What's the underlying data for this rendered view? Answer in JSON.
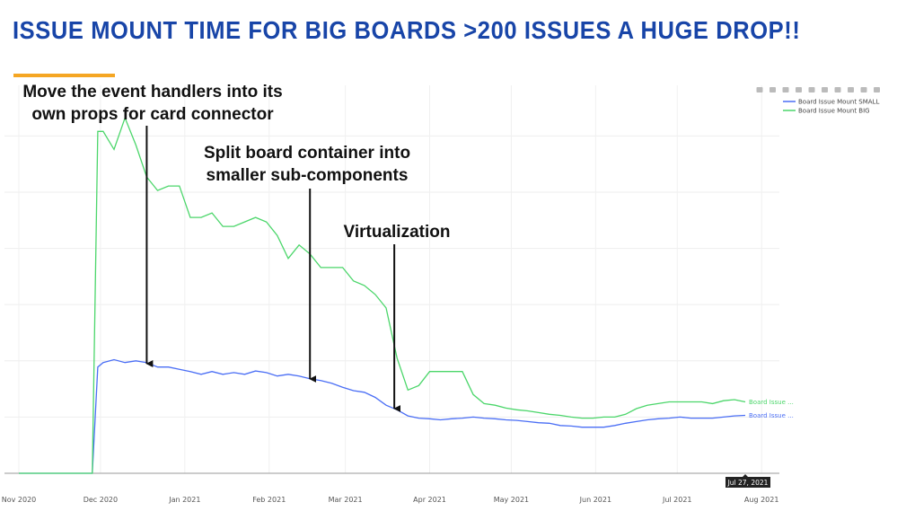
{
  "title": "ISSUE MOUNT TIME FOR BIG BOARDS >200 ISSUES A HUGE DROP!!",
  "toolbar": {
    "icons": [
      "camera-icon",
      "zoom-icon",
      "pan-icon",
      "zoom-in-icon",
      "zoom-out-icon",
      "autoscale-icon",
      "home-icon",
      "spike-lines-icon",
      "hover-closest-icon",
      "hover-compare-icon"
    ]
  },
  "hover_label": "Jul 27, 2021",
  "annotations": [
    {
      "lines": [
        "Move the event handlers into its",
        "own props for card connector"
      ],
      "at": "2020-12-18"
    },
    {
      "lines": [
        "Split board container into",
        "smaller sub-components"
      ],
      "at": "2021-02-16"
    },
    {
      "lines": [
        "Virtualization"
      ],
      "at": "2021-03-19"
    }
  ],
  "chart_data": {
    "type": "line",
    "title": "",
    "xlabel": "",
    "ylabel": "",
    "x_ticks": [
      {
        "date": "2020-11-01",
        "label": "Nov 2020"
      },
      {
        "date": "2020-12-01",
        "label": "Dec 2020"
      },
      {
        "date": "2021-01-01",
        "label": "Jan 2021"
      },
      {
        "date": "2021-02-01",
        "label": "Feb 2021"
      },
      {
        "date": "2021-03-01",
        "label": "Mar 2021"
      },
      {
        "date": "2021-04-01",
        "label": "Apr 2021"
      },
      {
        "date": "2021-05-01",
        "label": "May 2021"
      },
      {
        "date": "2021-06-01",
        "label": "Jun 2021"
      },
      {
        "date": "2021-07-01",
        "label": "Jul 2021"
      },
      {
        "date": "2021-08-01",
        "label": "Aug 2021"
      }
    ],
    "xlim": [
      "2020-10-30",
      "2021-08-10"
    ],
    "ylim": [
      0,
      6.9
    ],
    "y_ticks_shown": false,
    "grid": true,
    "legend_placement": "top-right",
    "x": [
      "2020-11-01",
      "2020-11-28",
      "2020-11-30",
      "2020-12-02",
      "2020-12-06",
      "2020-12-10",
      "2020-12-14",
      "2020-12-18",
      "2020-12-22",
      "2020-12-26",
      "2020-12-30",
      "2021-01-03",
      "2021-01-07",
      "2021-01-11",
      "2021-01-15",
      "2021-01-19",
      "2021-01-23",
      "2021-01-27",
      "2021-01-31",
      "2021-02-04",
      "2021-02-08",
      "2021-02-12",
      "2021-02-16",
      "2021-02-20",
      "2021-02-24",
      "2021-02-28",
      "2021-03-04",
      "2021-03-08",
      "2021-03-12",
      "2021-03-16",
      "2021-03-20",
      "2021-03-24",
      "2021-03-28",
      "2021-04-01",
      "2021-04-05",
      "2021-04-09",
      "2021-04-13",
      "2021-04-17",
      "2021-04-21",
      "2021-04-25",
      "2021-04-29",
      "2021-05-03",
      "2021-05-07",
      "2021-05-11",
      "2021-05-15",
      "2021-05-19",
      "2021-05-23",
      "2021-05-27",
      "2021-05-31",
      "2021-06-04",
      "2021-06-08",
      "2021-06-12",
      "2021-06-16",
      "2021-06-20",
      "2021-06-24",
      "2021-06-28",
      "2021-07-02",
      "2021-07-06",
      "2021-07-10",
      "2021-07-14",
      "2021-07-18",
      "2021-07-22",
      "2021-07-26"
    ],
    "series": [
      {
        "name": "Board Issue Mount SMALL",
        "end_label": "Board Issue ...",
        "color": "#4a6ef5",
        "values": [
          0,
          0,
          1.89,
          1.97,
          2.02,
          1.97,
          2.0,
          1.97,
          1.89,
          1.89,
          1.85,
          1.81,
          1.76,
          1.81,
          1.76,
          1.79,
          1.76,
          1.82,
          1.79,
          1.73,
          1.76,
          1.73,
          1.68,
          1.65,
          1.6,
          1.53,
          1.47,
          1.44,
          1.35,
          1.21,
          1.13,
          1.02,
          0.98,
          0.97,
          0.95,
          0.97,
          0.98,
          1.0,
          0.98,
          0.97,
          0.95,
          0.94,
          0.92,
          0.9,
          0.89,
          0.85,
          0.84,
          0.82,
          0.82,
          0.82,
          0.85,
          0.89,
          0.92,
          0.95,
          0.97,
          0.98,
          1.0,
          0.98,
          0.98,
          0.98,
          1.0,
          1.02,
          1.03
        ]
      },
      {
        "name": "Board Issue Mount BIG",
        "end_label": "Board Issue ...",
        "color": "#4bd66a",
        "values": [
          0,
          0,
          6.08,
          6.08,
          5.76,
          6.32,
          5.84,
          5.27,
          5.03,
          5.11,
          5.11,
          4.55,
          4.55,
          4.63,
          4.39,
          4.39,
          4.47,
          4.55,
          4.47,
          4.23,
          3.82,
          4.06,
          3.9,
          3.66,
          3.66,
          3.66,
          3.42,
          3.34,
          3.18,
          2.94,
          2.05,
          1.48,
          1.56,
          1.81,
          1.81,
          1.81,
          1.81,
          1.4,
          1.24,
          1.21,
          1.16,
          1.13,
          1.11,
          1.08,
          1.05,
          1.03,
          1.0,
          0.98,
          0.98,
          1.0,
          1.0,
          1.05,
          1.15,
          1.21,
          1.24,
          1.27,
          1.27,
          1.27,
          1.27,
          1.24,
          1.29,
          1.31,
          1.27
        ]
      }
    ]
  }
}
